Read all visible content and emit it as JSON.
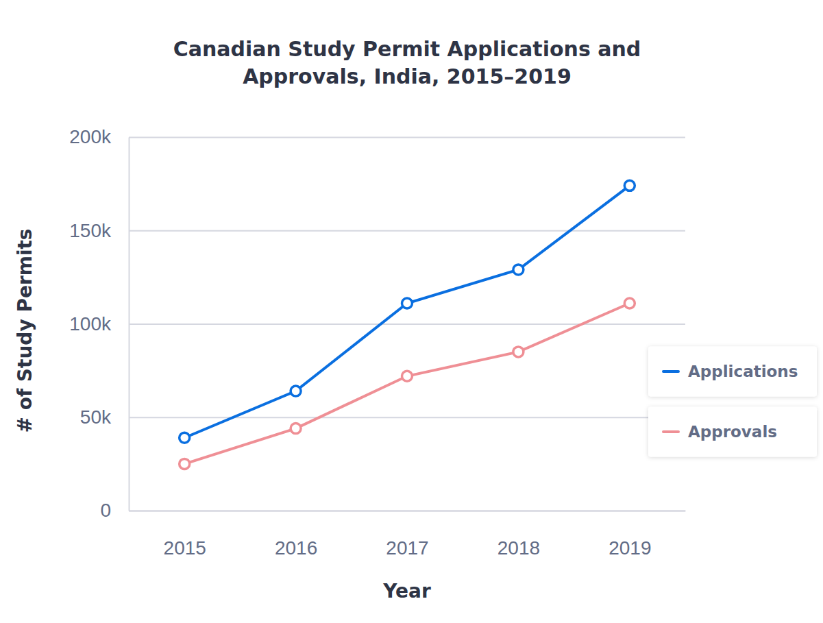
{
  "chart_data": {
    "type": "line",
    "title": "Canadian Study Permit Applications and Approvals, India, 2015–2019",
    "x_label": "Year",
    "y_label": "# of Study Permits",
    "categories": [
      "2015",
      "2016",
      "2017",
      "2018",
      "2019"
    ],
    "series": [
      {
        "name": "Applications",
        "color": "#0a6fe0",
        "marker": "circle",
        "values": [
          39000,
          64000,
          111000,
          129000,
          174000
        ]
      },
      {
        "name": "Approvals",
        "color": "#ef8f95",
        "marker": "circle",
        "values": [
          25000,
          44000,
          72000,
          85000,
          111000
        ]
      }
    ],
    "ylim": [
      0,
      200000
    ],
    "yticks": [
      0,
      {
        "value": 50000,
        "label": "50k"
      },
      {
        "value": 100000,
        "label": "100k"
      },
      {
        "value": 150000,
        "label": "150k"
      },
      {
        "value": 200000,
        "label": "200k"
      }
    ],
    "grid": true,
    "legend": "right"
  }
}
